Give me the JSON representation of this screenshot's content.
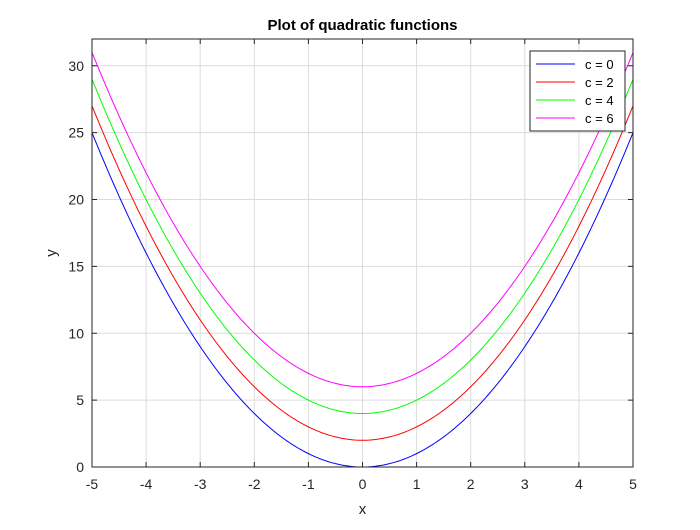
{
  "chart_data": {
    "type": "line",
    "title": "Plot of quadratic functions",
    "xlabel": "x",
    "ylabel": "y",
    "xlim": [
      -5,
      5
    ],
    "ylim": [
      0,
      32
    ],
    "xticks": [
      -5,
      -4,
      -3,
      -2,
      -1,
      0,
      1,
      2,
      3,
      4,
      5
    ],
    "yticks": [
      0,
      5,
      10,
      15,
      20,
      25,
      30
    ],
    "grid": true,
    "legend_position": "top-right",
    "function": "y = x^2 + c",
    "x": [
      -5,
      -4.5,
      -4,
      -3.5,
      -3,
      -2.5,
      -2,
      -1.5,
      -1,
      -0.5,
      0,
      0.5,
      1,
      1.5,
      2,
      2.5,
      3,
      3.5,
      4,
      4.5,
      5
    ],
    "series": [
      {
        "name": "c = 0",
        "color": "#0000ff",
        "c": 0,
        "values": [
          25,
          20.25,
          16,
          12.25,
          9,
          6.25,
          4,
          2.25,
          1,
          0.25,
          0,
          0.25,
          1,
          2.25,
          4,
          6.25,
          9,
          12.25,
          16,
          20.25,
          25
        ]
      },
      {
        "name": "c = 2",
        "color": "#ff0000",
        "c": 2,
        "values": [
          27,
          22.25,
          18,
          14.25,
          11,
          8.25,
          6,
          4.25,
          3,
          2.25,
          2,
          2.25,
          3,
          4.25,
          6,
          8.25,
          11,
          14.25,
          18,
          22.25,
          27
        ]
      },
      {
        "name": "c = 4",
        "color": "#00ff00",
        "c": 4,
        "values": [
          29,
          24.25,
          20,
          16.25,
          13,
          10.25,
          8,
          6.25,
          5,
          4.25,
          4,
          4.25,
          5,
          6.25,
          8,
          10.25,
          13,
          16.25,
          20,
          24.25,
          29
        ]
      },
      {
        "name": "c = 6",
        "color": "#ff00ff",
        "c": 6,
        "values": [
          31,
          26.25,
          22,
          18.25,
          15,
          12.25,
          10,
          8.25,
          7,
          6.25,
          6,
          6.25,
          7,
          8.25,
          10,
          12.25,
          15,
          18.25,
          22,
          26.25,
          31
        ]
      }
    ]
  }
}
